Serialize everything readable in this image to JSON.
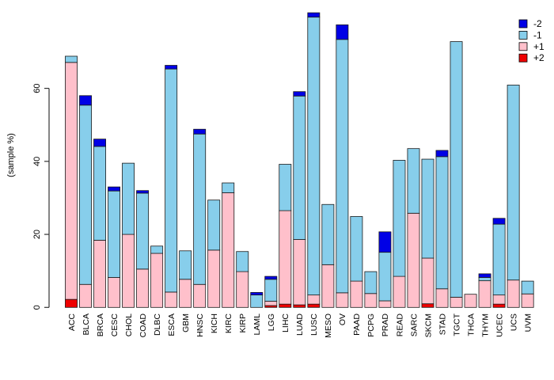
{
  "figure": {
    "background": "#FFFFFF",
    "axis_color": "#333333",
    "bar_border_color": "#1a1a1a"
  },
  "legend": {
    "position": "top-right",
    "items": [
      {
        "key": "minus2",
        "label": "-2",
        "color": "#0000E6"
      },
      {
        "key": "minus1",
        "label": "-1",
        "color": "#87CEEB"
      },
      {
        "key": "plus1",
        "label": "+1",
        "color": "#FFC0CB"
      },
      {
        "key": "plus2",
        "label": "+2",
        "color": "#EE0000"
      }
    ]
  },
  "chart_data": {
    "type": "bar",
    "stacked": true,
    "title": "",
    "xlabel": "",
    "ylabel": "(sample %)",
    "ylim": [
      0,
      84
    ],
    "yticks": [
      0,
      20,
      40,
      60
    ],
    "grid": false,
    "legend_position": "top-right",
    "x_label_rotation": 90,
    "stack_order_bottom_to_top": [
      "plus2",
      "plus1",
      "minus1",
      "minus2"
    ],
    "categories": [
      "ACC",
      "BLCA",
      "BRCA",
      "CESC",
      "CHOL",
      "COAD",
      "DLBC",
      "ESCA",
      "GBM",
      "HNSC",
      "KICH",
      "KIRC",
      "KIRP",
      "LAML",
      "LGG",
      "LIHC",
      "LUAD",
      "LUSC",
      "MESO",
      "OV",
      "PAAD",
      "PCPG",
      "PRAD",
      "READ",
      "SARC",
      "SKCM",
      "STAD",
      "TGCT",
      "THCA",
      "THYM",
      "UCEC",
      "UCS",
      "UVM"
    ],
    "series": [
      {
        "name": "-2",
        "key": "minus2",
        "color": "#0000E6",
        "values": [
          0,
          2.6,
          2.0,
          1.1,
          0,
          0.7,
          0,
          1.0,
          0,
          1.3,
          0,
          0,
          0,
          0.7,
          0.8,
          0,
          1.2,
          1.2,
          0,
          4.0,
          0,
          0,
          5.6,
          0,
          0,
          0,
          1.7,
          0,
          0,
          1.0,
          1.6,
          0,
          0
        ]
      },
      {
        "name": "-1",
        "key": "minus1",
        "color": "#87CEEB",
        "values": [
          1.7,
          49.1,
          25.7,
          23.7,
          19.5,
          20.8,
          2.0,
          61.1,
          7.8,
          41.2,
          13.7,
          2.7,
          5.5,
          3.4,
          6.0,
          12.7,
          39.3,
          76.1,
          16.5,
          69.4,
          17.7,
          6.0,
          13.3,
          31.8,
          17.7,
          27.1,
          36.2,
          70.0,
          0,
          0.9,
          19.4,
          53.4,
          3.5
        ]
      },
      {
        "name": "+1",
        "key": "plus1",
        "color": "#FFC0CB",
        "values": [
          64.9,
          6.3,
          18.4,
          8.2,
          20.0,
          10.5,
          14.8,
          4.2,
          7.7,
          6.3,
          15.7,
          31.4,
          9.8,
          0,
          1.2,
          25.6,
          17.9,
          2.5,
          11.7,
          4.0,
          7.2,
          3.8,
          1.8,
          8.5,
          25.8,
          12.5,
          5.1,
          2.8,
          3.6,
          7.3,
          2.5,
          7.5,
          3.7
        ]
      },
      {
        "name": "+2",
        "key": "plus2",
        "color": "#EE0000",
        "values": [
          2.2,
          0,
          0,
          0,
          0,
          0,
          0,
          0,
          0,
          0,
          0,
          0,
          0,
          0,
          0.5,
          0.9,
          0.7,
          0.9,
          0,
          0,
          0,
          0,
          0,
          0,
          0,
          1.0,
          0,
          0,
          0,
          0,
          0.9,
          0,
          0
        ]
      }
    ]
  }
}
